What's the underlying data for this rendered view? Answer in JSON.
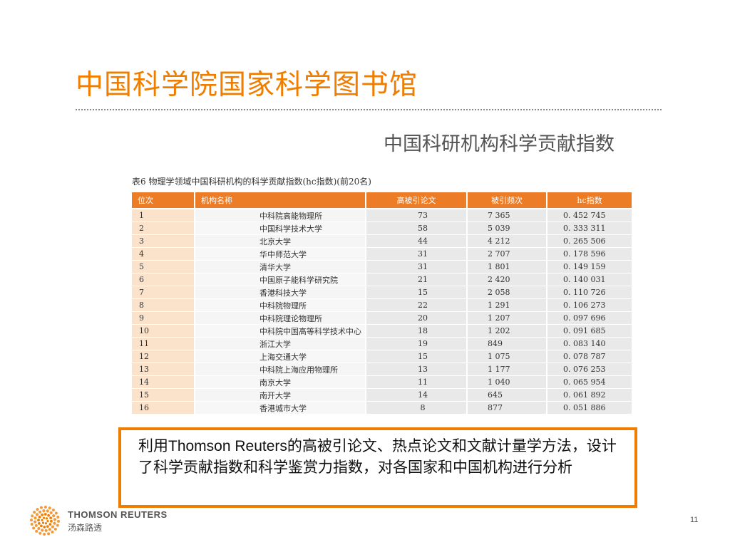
{
  "slide": {
    "title": "中国科学院国家科学图书馆",
    "subtitle": "中国科研机构科学贡献指数",
    "page_number": "11"
  },
  "table": {
    "caption": "表6   物理学领域中国科研机构的科学贡献指数(hc指数)(前20名)",
    "headers": {
      "rank": "位次",
      "name": "机构名称",
      "papers": "高被引论文",
      "citations": "被引频次",
      "hc": "hc指数"
    },
    "rows": [
      {
        "rank": "1",
        "name": "中科院高能物理所",
        "papers": "73",
        "citations": "7 365",
        "hc": "0. 452  745"
      },
      {
        "rank": "2",
        "name": "中国科学技术大学",
        "papers": "58",
        "citations": "5 039",
        "hc": "0. 333  311"
      },
      {
        "rank": "3",
        "name": "北京大学",
        "papers": "44",
        "citations": "4  212",
        "hc": "0. 265  506"
      },
      {
        "rank": "4",
        "name": "华中师范大学",
        "papers": "31",
        "citations": "2 707",
        "hc": "0. 178  596"
      },
      {
        "rank": "5",
        "name": "清华大学",
        "papers": "31",
        "citations": "1 801",
        "hc": "0. 149  159"
      },
      {
        "rank": "6",
        "name": "中国原子能科学研究院",
        "papers": "21",
        "citations": "2 420",
        "hc": "0. 140  031"
      },
      {
        "rank": "7",
        "name": "香港科技大学",
        "papers": "15",
        "citations": "2 058",
        "hc": "0. 110  726"
      },
      {
        "rank": "8",
        "name": "中科院物理所",
        "papers": "22",
        "citations": "1 291",
        "hc": "0. 106  273"
      },
      {
        "rank": "9",
        "name": "中科院理论物理所",
        "papers": "20",
        "citations": "1 207",
        "hc": "0. 097  696"
      },
      {
        "rank": "10",
        "name": "中科院中国高等科学技术中心",
        "papers": "18",
        "citations": "1 202",
        "hc": "0. 091  685"
      },
      {
        "rank": "11",
        "name": "浙江大学",
        "papers": "19",
        "citations": "849",
        "hc": "0. 083  140"
      },
      {
        "rank": "12",
        "name": "上海交通大学",
        "papers": "15",
        "citations": "1 075",
        "hc": "0. 078  787"
      },
      {
        "rank": "13",
        "name": "中科院上海应用物理所",
        "papers": "13",
        "citations": "1 177",
        "hc": "0. 076  253"
      },
      {
        "rank": "14",
        "name": "南京大学",
        "papers": "11",
        "citations": "1 040",
        "hc": "0. 065  954"
      },
      {
        "rank": "15",
        "name": "南开大学",
        "papers": "14",
        "citations": "645",
        "hc": "0. 061  892"
      },
      {
        "rank": "16",
        "name": "香港城市大学",
        "papers": "8",
        "citations": "877",
        "hc": "0. 051  886"
      }
    ]
  },
  "callout": {
    "text": "利用Thomson Reuters的高被引论文、热点论文和文献计量学方法，设计了科学贡献指数和科学鉴赏力指数，对各国家和中国机构进行分析"
  },
  "logo": {
    "icon": "thomson-reuters-dot-sphere-icon",
    "name_en": "THOMSON REUTERS",
    "name_cn": "汤森路透"
  },
  "colors": {
    "accent_orange": "#ef7d00",
    "header_orange": "#ec7c26",
    "rank_cell": "#fbe2cb",
    "number_cell": "#e9e9e9"
  }
}
